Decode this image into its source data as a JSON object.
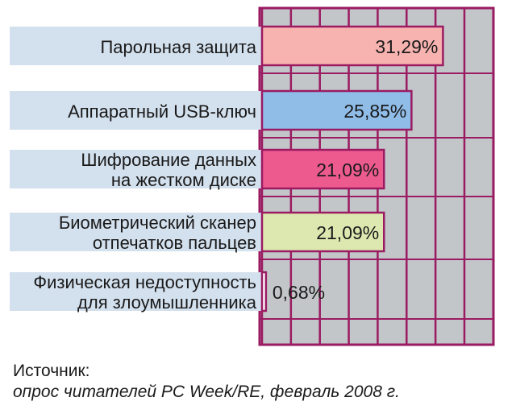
{
  "chart_data": {
    "type": "bar",
    "orientation": "horizontal",
    "categories": [
      [
        "Парольная защита"
      ],
      [
        "Аппаратный USB-ключ"
      ],
      [
        "Шифрование данных",
        "на жестком диске"
      ],
      [
        "Биометрический сканер",
        "отпечатков пальцев"
      ],
      [
        "Физическая недоступность",
        "для злоумышленника"
      ]
    ],
    "values": [
      31.29,
      25.85,
      21.09,
      21.09,
      0.68
    ],
    "value_labels": [
      "31,29%",
      "25,85%",
      "21,09%",
      "21,09%",
      "0,68%"
    ],
    "bar_colors": [
      "#f7b3b0",
      "#8fbde8",
      "#ec5a8e",
      "#dde8b0",
      "#ffffff"
    ],
    "xlim": [
      0,
      35
    ],
    "grid": true,
    "colors": {
      "panel": "#c3c6c9",
      "grid": "#9b1b62",
      "label_band": "#d3e0ed",
      "bar_border": "#9b1b62"
    }
  },
  "source": {
    "heading": "Источник:",
    "text": "опрос читателей PC Week/RE, февраль 2008 г."
  }
}
